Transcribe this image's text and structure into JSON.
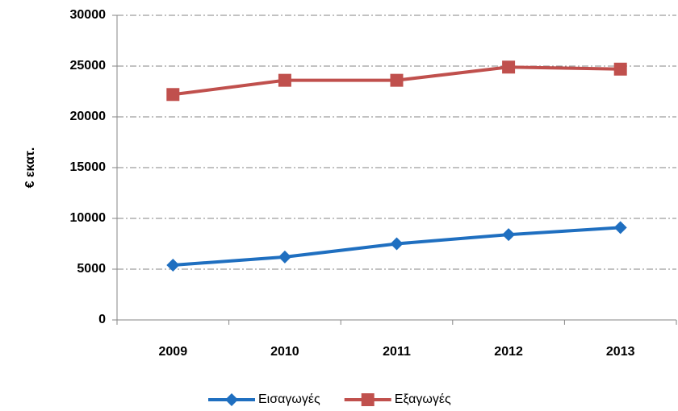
{
  "chart_data": {
    "type": "line",
    "y_label": "€ εκατ.",
    "categories": [
      "2009",
      "2010",
      "2011",
      "2012",
      "2013"
    ],
    "series": [
      {
        "name": "Εισαγωγές",
        "color": "#1f6fc0",
        "marker": "diamond",
        "values": [
          5400,
          6200,
          7500,
          8400,
          9100
        ]
      },
      {
        "name": "Εξαγωγές",
        "color": "#c0504d",
        "marker": "square",
        "values": [
          22200,
          23600,
          23600,
          24900,
          24700
        ]
      }
    ],
    "ylim": [
      0,
      30000
    ],
    "yticks": [
      0,
      5000,
      10000,
      15000,
      20000,
      25000,
      30000
    ],
    "grid": true
  }
}
